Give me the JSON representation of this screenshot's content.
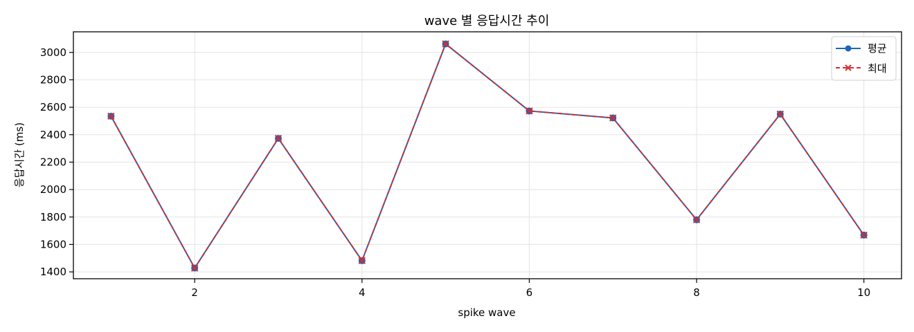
{
  "chart_data": {
    "type": "line",
    "title": "wave 별 응답시간 추이",
    "xlabel": "spike wave",
    "ylabel": "응답시간 (ms)",
    "x": [
      1,
      2,
      3,
      4,
      5,
      6,
      7,
      8,
      9,
      10
    ],
    "xlim": [
      0.55,
      10.45
    ],
    "ylim": [
      1350,
      3150
    ],
    "xticks": [
      2,
      4,
      6,
      8,
      10
    ],
    "yticks": [
      1400,
      1600,
      1800,
      2000,
      2200,
      2400,
      2600,
      2800,
      3000
    ],
    "grid": true,
    "legend_position": "top-right",
    "series": [
      {
        "name": "평균",
        "values": [
          2535,
          1428,
          2373,
          1482,
          3062,
          2573,
          2522,
          1780,
          2550,
          1668
        ],
        "color": "#1f66b8",
        "line_style": "solid",
        "marker": "circle"
      },
      {
        "name": "최대",
        "values": [
          2535,
          1428,
          2373,
          1482,
          3062,
          2573,
          2522,
          1780,
          2550,
          1668
        ],
        "color": "#d22f2f",
        "line_style": "dashed",
        "marker": "x"
      }
    ]
  }
}
